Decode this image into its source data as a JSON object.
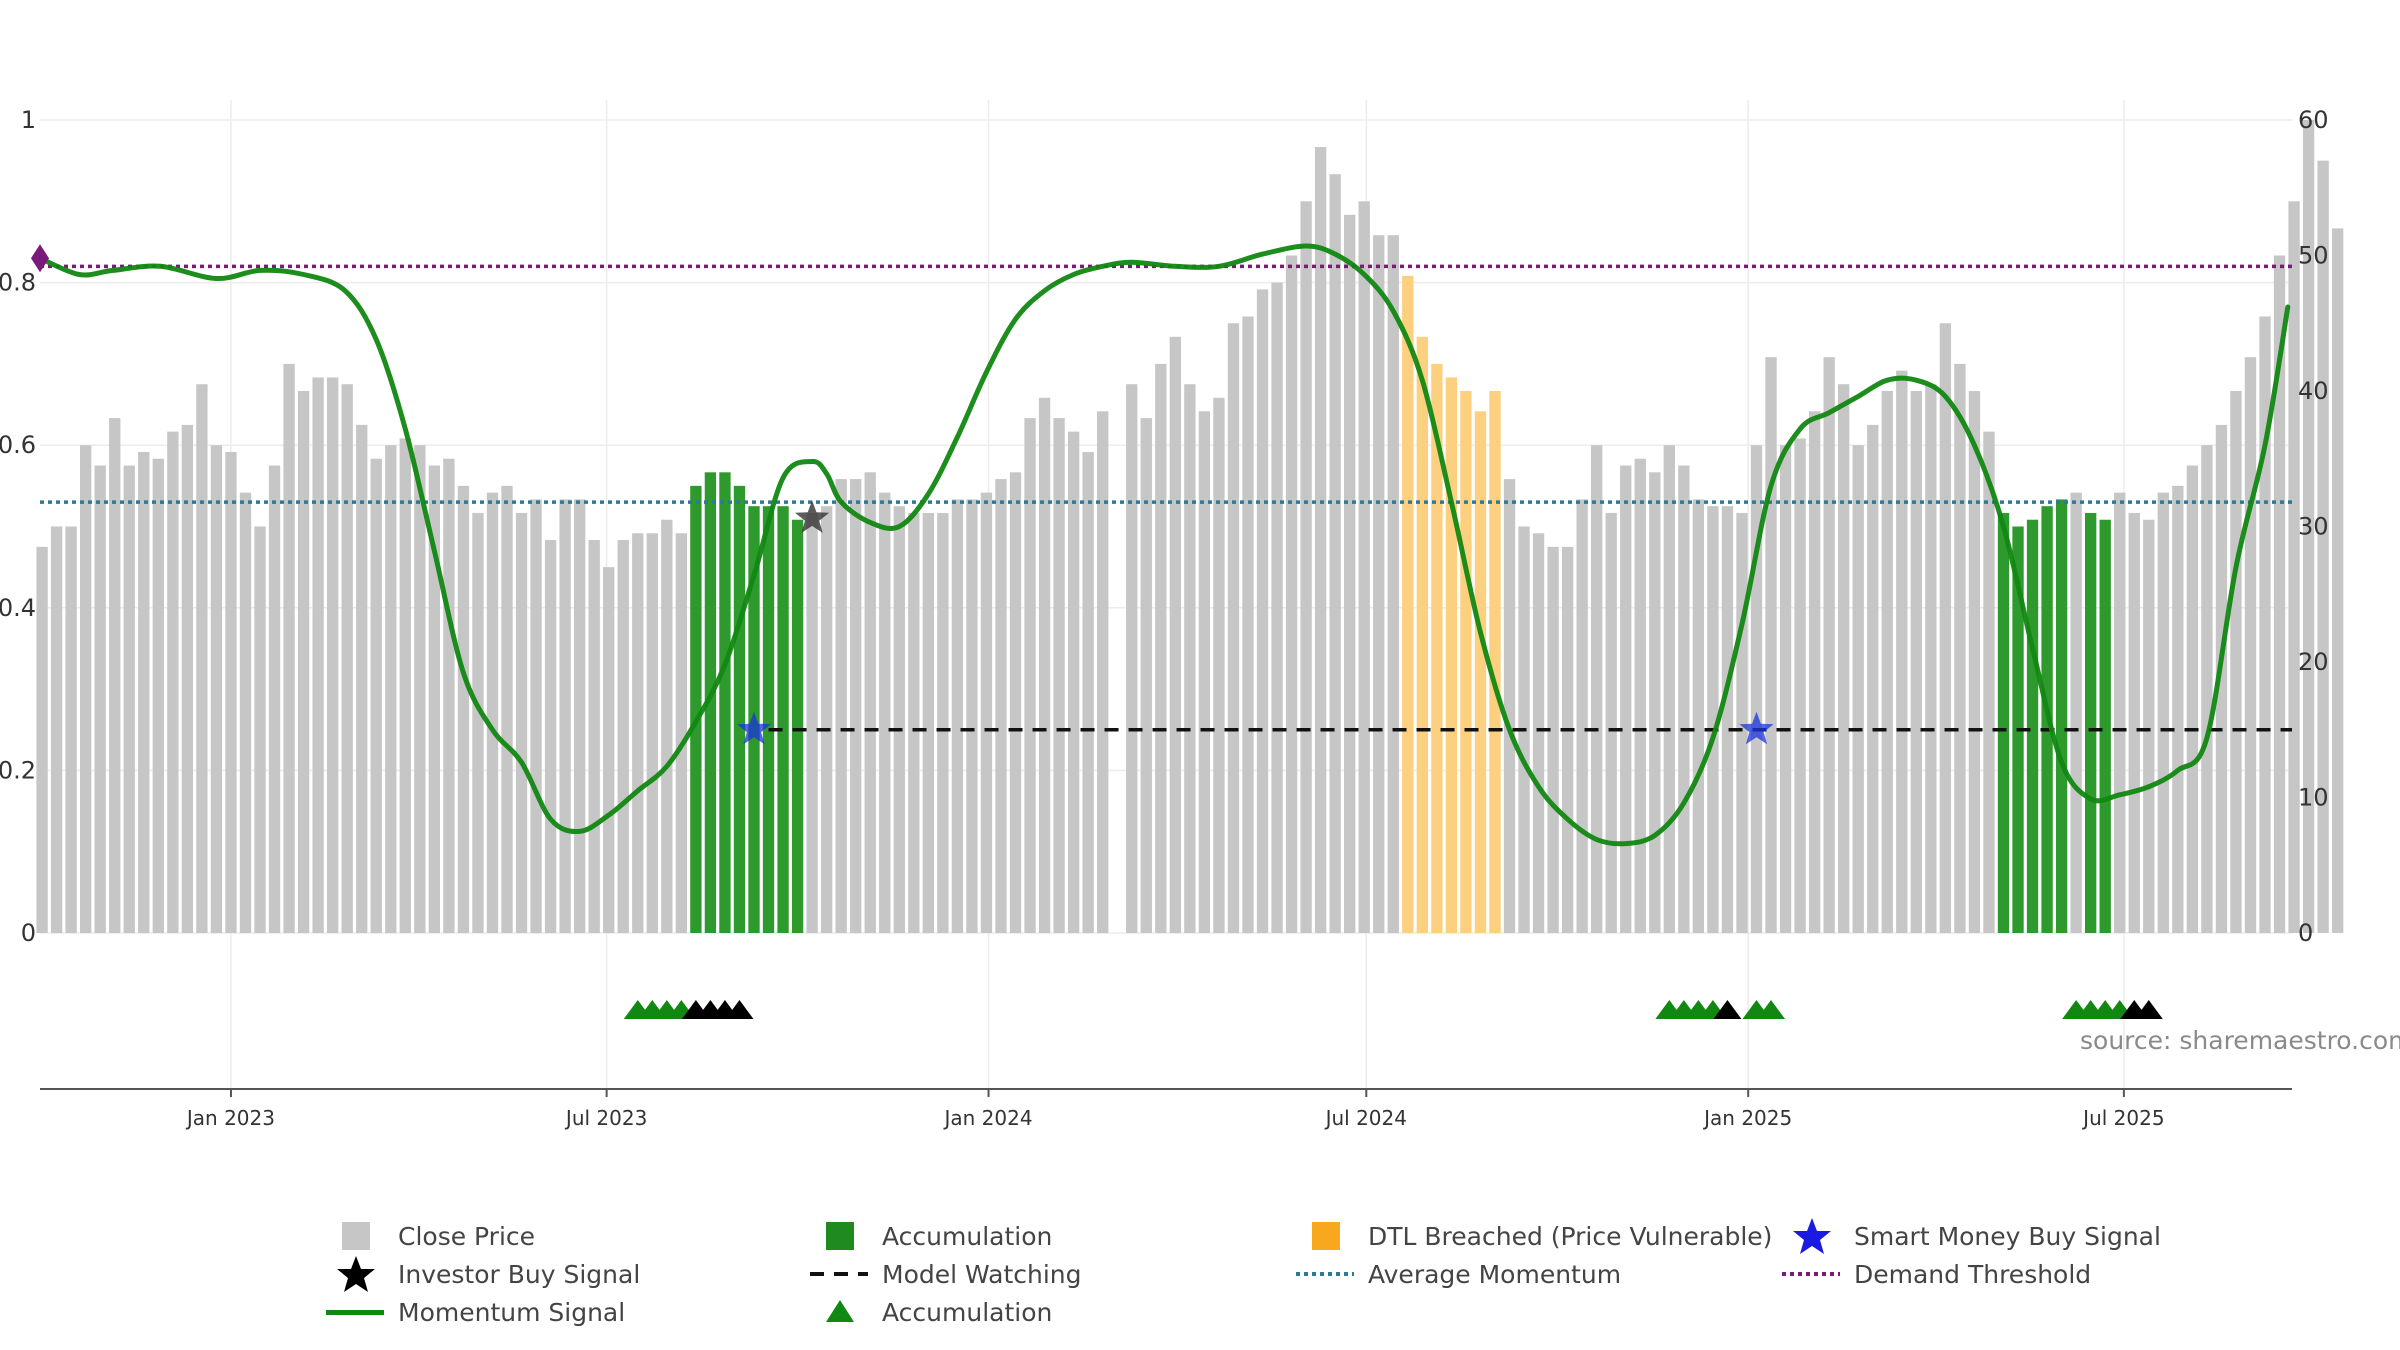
{
  "source_text": "source: sharemaestro.com",
  "colors": {
    "close": "#c6c6c6",
    "accumulation": "#2e9a2e",
    "dtl": "#fdd07f",
    "momentum": "#118811",
    "avg_momentum": "#2a7a9a",
    "demand": "#7a1a7a",
    "watching": "#111111",
    "smart_money": "#1a33dd",
    "investor": "#333333"
  },
  "legend": {
    "close_price": "Close Price",
    "accumulation": "Accumulation",
    "dtl": "DTL Breached (Price Vulnerable)",
    "smart_money": "Smart Money Buy Signal",
    "investor": "Investor Buy Signal",
    "watching": "Model Watching",
    "avg_momentum": "Average Momentum",
    "demand": "Demand Threshold",
    "momentum": "Momentum Signal",
    "accumulation_marker": "Accumulation"
  },
  "chart_data": {
    "type": "bar",
    "x_axis": {
      "range": [
        "2022-10-01",
        "2025-09-20"
      ],
      "tick_labels": [
        "Jan 2023",
        "Jul 2023",
        "Jan 2024",
        "Jul 2024",
        "Jan 2025",
        "Jul 2025"
      ],
      "tick_dates": [
        "2023-01-01",
        "2023-07-01",
        "2024-01-01",
        "2024-07-01",
        "2025-01-01",
        "2025-07-01"
      ]
    },
    "y_left": {
      "range": [
        0,
        1
      ],
      "ticks": [
        "0",
        "0.2",
        "0.4",
        "0.6",
        "0.8",
        "1"
      ]
    },
    "y_right": {
      "range": [
        0,
        60
      ],
      "ticks": [
        "0",
        "10",
        "20",
        "30",
        "40",
        "50",
        "60"
      ]
    },
    "bar_start": "2022-10-02",
    "bar_interval_days": 7,
    "close_prices": [
      28.5,
      30,
      30,
      36,
      34.5,
      38,
      34.5,
      35.5,
      35,
      37,
      37.5,
      40.5,
      36,
      35.5,
      32.5,
      30,
      34.5,
      42,
      40,
      41,
      41,
      40.5,
      37.5,
      35,
      36,
      36.5,
      36,
      34.5,
      35,
      33,
      31,
      32.5,
      33,
      31,
      32,
      29,
      32,
      32,
      29,
      27,
      29,
      29.5,
      29.5,
      30.5,
      29.5,
      33,
      34,
      34,
      33,
      31.5,
      31.5,
      31.5,
      30.5,
      31,
      31.5,
      33.5,
      33.5,
      34,
      32.5,
      31.5,
      31,
      31,
      31,
      32,
      32,
      32.5,
      33.5,
      34,
      38,
      39.5,
      38,
      37,
      35.5,
      38.5,
      0,
      40.5,
      38,
      42,
      44,
      40.5,
      38.5,
      39.5,
      45,
      45.5,
      47.5,
      48,
      50,
      54,
      58,
      56,
      53,
      54,
      51.5,
      51.5,
      48.5,
      44,
      42,
      41,
      40,
      38.5,
      40,
      33.5,
      30,
      29.5,
      28.5,
      28.5,
      32,
      36,
      31,
      34.5,
      35,
      34,
      36,
      34.5,
      32,
      31.5,
      31.5,
      31,
      36,
      42.5,
      36,
      36.5,
      38.5,
      42.5,
      40.5,
      36,
      37.5,
      40,
      41.5,
      40,
      40.5,
      45,
      42,
      40,
      37,
      31,
      30,
      30.5,
      31.5,
      32,
      32.5,
      31,
      30.5,
      32.5,
      31,
      30.5,
      32.5,
      33,
      34.5,
      36,
      37.5,
      40,
      42.5,
      45.5,
      50,
      54,
      60,
      57,
      52
    ],
    "bar_states": "CCCCCCCCCCCCCCCCCCCCCCCCCCCCCCCCCCCCCCCCCCCCCAAAAAAAACCCCCCCCCCCCCCCCCCCCCCCCCCCCCCCCCCCCCCCCCDDDDDDDCCCCCCCCCCCCCCCCCCCCCCCCCCCCCCCCCCAAAAACAACCCCCCCCCCCCCCCCCCCCCCCCCCCCCCAAAAAAACCCCCDDDDC",
    "bar_state_codes": {
      "C": "Close Price",
      "A": "Accumulation",
      "D": "DTL Breached (Price Vulnerable)"
    },
    "momentum": {
      "dates": [
        "2022-10-01",
        "2022-10-20",
        "2022-11-05",
        "2022-11-28",
        "2022-12-25",
        "2023-01-15",
        "2023-02-05",
        "2023-02-25",
        "2023-03-12",
        "2023-03-26",
        "2023-04-09",
        "2023-04-23",
        "2023-05-07",
        "2023-05-21",
        "2023-06-04",
        "2023-06-18",
        "2023-07-02",
        "2023-07-16",
        "2023-07-30",
        "2023-08-13",
        "2023-08-27",
        "2023-09-10",
        "2023-09-24",
        "2023-10-08",
        "2023-10-15",
        "2023-10-22",
        "2023-11-05",
        "2023-11-19",
        "2023-12-03",
        "2023-12-17",
        "2023-12-31",
        "2024-01-14",
        "2024-01-28",
        "2024-02-11",
        "2024-02-25",
        "2024-03-10",
        "2024-03-31",
        "2024-04-21",
        "2024-05-12",
        "2024-06-02",
        "2024-06-16",
        "2024-06-30",
        "2024-07-14",
        "2024-07-28",
        "2024-08-11",
        "2024-08-25",
        "2024-09-08",
        "2024-09-22",
        "2024-10-06",
        "2024-10-20",
        "2024-11-03",
        "2024-11-17",
        "2024-12-01",
        "2024-12-15",
        "2024-12-29",
        "2025-01-12",
        "2025-01-26",
        "2025-02-09",
        "2025-02-23",
        "2025-03-09",
        "2025-03-23",
        "2025-04-06",
        "2025-04-20",
        "2025-05-04",
        "2025-05-18",
        "2025-06-01",
        "2025-06-15",
        "2025-06-29",
        "2025-07-13",
        "2025-07-27",
        "2025-08-10",
        "2025-08-24",
        "2025-09-07",
        "2025-09-18"
      ],
      "values": [
        0.83,
        0.81,
        0.815,
        0.82,
        0.805,
        0.815,
        0.81,
        0.79,
        0.73,
        0.62,
        0.47,
        0.32,
        0.25,
        0.21,
        0.14,
        0.125,
        0.145,
        0.175,
        0.205,
        0.26,
        0.33,
        0.44,
        0.56,
        0.58,
        0.565,
        0.53,
        0.505,
        0.5,
        0.54,
        0.61,
        0.69,
        0.755,
        0.79,
        0.81,
        0.82,
        0.825,
        0.82,
        0.82,
        0.835,
        0.845,
        0.835,
        0.81,
        0.765,
        0.68,
        0.53,
        0.37,
        0.25,
        0.18,
        0.14,
        0.115,
        0.11,
        0.12,
        0.16,
        0.24,
        0.38,
        0.55,
        0.62,
        0.64,
        0.66,
        0.68,
        0.68,
        0.66,
        0.6,
        0.5,
        0.35,
        0.21,
        0.165,
        0.17,
        0.18,
        0.2,
        0.24,
        0.45,
        0.6,
        0.77
      ]
    },
    "average_momentum": 0.53,
    "demand_threshold": 0.82,
    "model_watching": {
      "y": 0.25,
      "from": "2023-09-17",
      "to": "2025-09-20"
    },
    "smart_money_buy_signals": [
      {
        "date": "2023-09-10",
        "y": 0.25
      },
      {
        "date": "2025-01-05",
        "y": 0.25
      }
    ],
    "investor_buy_signals": [
      {
        "date": "2023-10-08",
        "y": 0.51
      }
    ],
    "accumulation_markers": [
      {
        "date": "2023-07-16",
        "color": "green"
      },
      {
        "date": "2023-07-23",
        "color": "green"
      },
      {
        "date": "2023-07-30",
        "color": "green"
      },
      {
        "date": "2023-08-06",
        "color": "green"
      },
      {
        "date": "2023-08-13",
        "color": "black"
      },
      {
        "date": "2023-08-20",
        "color": "black"
      },
      {
        "date": "2023-08-27",
        "color": "black"
      },
      {
        "date": "2023-09-03",
        "color": "black"
      },
      {
        "date": "2024-11-24",
        "color": "green"
      },
      {
        "date": "2024-12-01",
        "color": "green"
      },
      {
        "date": "2024-12-08",
        "color": "green"
      },
      {
        "date": "2024-12-15",
        "color": "green"
      },
      {
        "date": "2024-12-22",
        "color": "black"
      },
      {
        "date": "2025-01-05",
        "color": "green"
      },
      {
        "date": "2025-01-12",
        "color": "green"
      },
      {
        "date": "2025-06-08",
        "color": "green"
      },
      {
        "date": "2025-06-15",
        "color": "green"
      },
      {
        "date": "2025-06-22",
        "color": "green"
      },
      {
        "date": "2025-06-29",
        "color": "green"
      },
      {
        "date": "2025-07-06",
        "color": "black"
      },
      {
        "date": "2025-07-13",
        "color": "black"
      }
    ]
  }
}
